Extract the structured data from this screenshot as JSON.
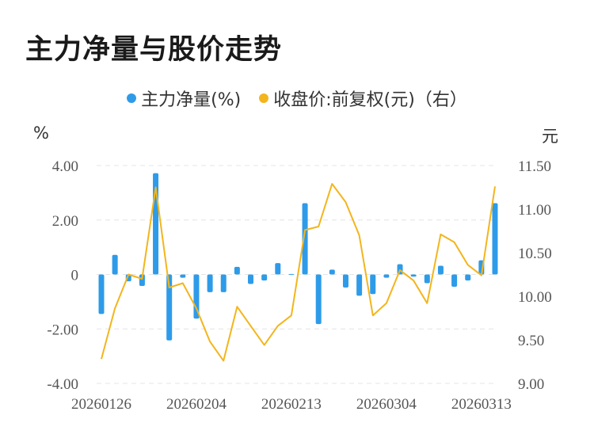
{
  "title": "主力净量与股价走势",
  "legend": [
    {
      "label": "主力净量(%)",
      "color": "#2e9be9"
    },
    {
      "label": "收盘价:前复权(元)（右）",
      "color": "#f3b51c"
    }
  ],
  "left_unit": "%",
  "right_unit": "元",
  "chart_data": {
    "type": "bar",
    "x": [
      "20260126",
      "20260127",
      "20260128",
      "20260129",
      "20260130",
      "20260202",
      "20260203",
      "20260204",
      "20260205",
      "20260206",
      "20260209",
      "20260210",
      "20260211",
      "20260212",
      "20260213",
      "20260224",
      "20260225",
      "20260226",
      "20260227",
      "20260302",
      "20260303",
      "20260304",
      "20260305",
      "20260306",
      "20260309",
      "20260310",
      "20260311",
      "20260312",
      "20260313",
      "20260316"
    ],
    "x_tick_labels": [
      "20260126",
      "20260204",
      "20260213",
      "20260304",
      "20260313"
    ],
    "series": [
      {
        "axis": "left",
        "type": "bar",
        "color": "#2e9be9",
        "values": [
          -1.45,
          0.72,
          -0.25,
          -0.42,
          3.72,
          -2.42,
          -0.12,
          -1.62,
          -0.65,
          -0.65,
          0.28,
          -0.35,
          -0.22,
          0.42,
          0.02,
          2.62,
          -1.82,
          0.18,
          -0.48,
          -0.78,
          -0.72,
          -0.12,
          0.38,
          -0.08,
          -0.32,
          0.32,
          -0.45,
          -0.22,
          0.52,
          2.62
        ]
      },
      {
        "axis": "right",
        "type": "line",
        "color": "#f3b51c",
        "values": [
          9.28,
          9.86,
          10.25,
          10.2,
          11.25,
          10.1,
          10.15,
          9.86,
          9.48,
          9.26,
          9.88,
          9.66,
          9.44,
          9.66,
          9.78,
          10.76,
          10.8,
          11.29,
          11.08,
          10.7,
          9.78,
          9.92,
          10.3,
          10.18,
          9.92,
          10.71,
          10.62,
          10.36,
          10.24,
          11.26
        ]
      }
    ],
    "y_left": {
      "min": -4.0,
      "max": 4.0,
      "ticks": [
        "4.00",
        "2.00",
        "0",
        "-2.00",
        "-4.00"
      ]
    },
    "y_right": {
      "min": 9.0,
      "max": 11.5,
      "ticks": [
        "11.50",
        "11.00",
        "10.50",
        "10.00",
        "9.50",
        "9.00"
      ]
    },
    "grid": "horizontal dashed"
  }
}
